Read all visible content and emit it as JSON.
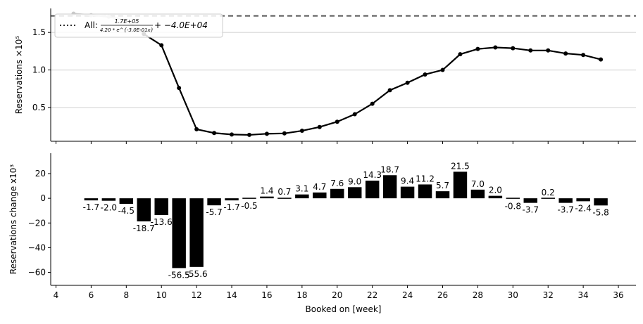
{
  "chart_data": [
    {
      "type": "line",
      "x": [
        5,
        6,
        7,
        8,
        9,
        10,
        11,
        12,
        13,
        14,
        15,
        16,
        17,
        18,
        19,
        20,
        21,
        22,
        23,
        24,
        25,
        26,
        27,
        28,
        29,
        30,
        31,
        32,
        33,
        34,
        35
      ],
      "y": [
        1.75,
        1.73,
        1.71,
        1.66,
        1.48,
        1.33,
        0.76,
        0.21,
        0.16,
        0.14,
        0.135,
        0.15,
        0.155,
        0.19,
        0.24,
        0.31,
        0.41,
        0.55,
        0.73,
        0.83,
        0.94,
        1.0,
        1.21,
        1.28,
        1.3,
        1.29,
        1.26,
        1.26,
        1.22,
        1.2,
        1.14
      ],
      "faded_points": 4,
      "xlim": [
        3.7,
        37.0
      ],
      "ylim": [
        0.05,
        1.82
      ],
      "yticks": [
        0.5,
        1.0,
        1.5
      ],
      "ytick_labels": [
        "0.5",
        "1.0",
        "1.5"
      ],
      "ylabel": "Reservations ×10⁵",
      "asymptote": 1.72,
      "grid": "y",
      "legend": {
        "placement": "top-left",
        "prefix": "All: ",
        "numerator": "1.7E+05",
        "denominator": "4.20 * e^{-3.0E-01x}",
        "suffix": " + −4.0E+04"
      },
      "colors": {
        "line": "#000000",
        "faded": "#c8c8c8",
        "asymptote": "#555555",
        "grid": "#dddddd"
      }
    },
    {
      "type": "bar",
      "x": [
        6,
        7,
        8,
        9,
        10,
        11,
        12,
        13,
        14,
        15,
        16,
        17,
        18,
        19,
        20,
        21,
        22,
        23,
        24,
        25,
        26,
        27,
        28,
        29,
        30,
        31,
        32,
        33,
        34,
        35
      ],
      "values": [
        -1.7,
        -2.0,
        -4.5,
        -18.7,
        -13.6,
        -56.5,
        -55.6,
        -5.7,
        -1.7,
        -0.5,
        1.4,
        0.7,
        3.1,
        4.7,
        7.6,
        9.0,
        14.3,
        18.7,
        9.4,
        11.2,
        5.7,
        21.5,
        7.0,
        2.0,
        -0.8,
        -3.7,
        0.2,
        -3.7,
        -2.4,
        -5.8
      ],
      "labels": [
        "-1.7",
        "-2.0",
        "-4.5",
        "-18.7",
        "-13.6",
        "-56.5",
        "-55.6",
        "-5.7",
        "-1.7",
        "-0.5",
        "1.4",
        "0.7",
        "3.1",
        "4.7",
        "7.6",
        "9.0",
        "14.3",
        "18.7",
        "9.4",
        "11.2",
        "5.7",
        "21.5",
        "7.0",
        "2.0",
        "-0.8",
        "-3.7",
        "0.2",
        "-3.7",
        "-2.4",
        "-5.8"
      ],
      "xlim": [
        3.7,
        37.0
      ],
      "ylim": [
        -70.5,
        36.5
      ],
      "xticks": [
        4,
        6,
        8,
        10,
        12,
        14,
        16,
        18,
        20,
        22,
        24,
        26,
        28,
        30,
        32,
        34,
        36
      ],
      "xtick_labels": [
        "4",
        "6",
        "8",
        "10",
        "12",
        "14",
        "16",
        "18",
        "20",
        "22",
        "24",
        "26",
        "28",
        "30",
        "32",
        "34",
        "36"
      ],
      "yticks": [
        20,
        0,
        -20,
        -40,
        -60
      ],
      "ytick_labels": [
        "20",
        "0",
        "−20",
        "−40",
        "−60"
      ],
      "xlabel": "Booked on [week]",
      "ylabel": "Reservations change x10³",
      "colors": {
        "bar": "#000000"
      }
    }
  ]
}
